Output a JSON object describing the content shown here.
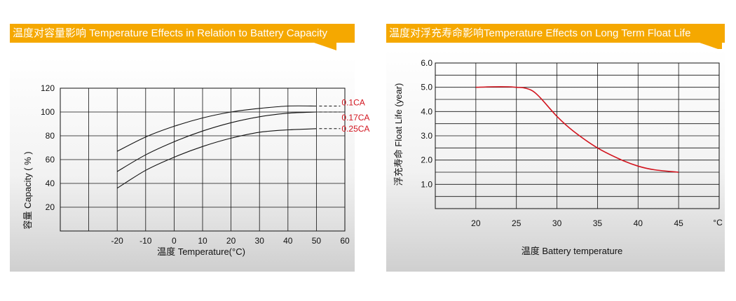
{
  "left": {
    "banner_title": "温度对容量影响 Temperature Effects in Relation to Battery Capacity",
    "chart_data": {
      "type": "line",
      "xlabel": "温度  Temperature(°C)",
      "ylabel": "容量 Capacity ( % )",
      "x_ticks": [
        "-20",
        "-10",
        "0",
        "10",
        "20",
        "30",
        "40",
        "50",
        "60"
      ],
      "y_ticks": [
        "120",
        "100",
        "80",
        "60",
        "40",
        "20"
      ],
      "xlim": [
        -40,
        60
      ],
      "ylim": [
        0,
        120
      ],
      "grid": true,
      "series": [
        {
          "name": "0.1CA",
          "x": [
            -20,
            -10,
            0,
            10,
            20,
            30,
            40,
            50
          ],
          "values": [
            67,
            79,
            88,
            95,
            100,
            103,
            105,
            105
          ]
        },
        {
          "name": "0.17CA",
          "x": [
            -20,
            -10,
            0,
            10,
            20,
            30,
            40,
            50
          ],
          "values": [
            50,
            64,
            75,
            84,
            91,
            96,
            99,
            100
          ]
        },
        {
          "name": "0.25CA",
          "x": [
            -20,
            -10,
            0,
            10,
            20,
            30,
            40,
            50
          ],
          "values": [
            36,
            51,
            62,
            71,
            78,
            83,
            85,
            86
          ]
        }
      ],
      "series_color": "#111111",
      "label_color": "#d2141e"
    }
  },
  "right": {
    "banner_title": "温度对浮充寿命影响Temperature Effects on Long Term Float Life",
    "chart_data": {
      "type": "line",
      "xlabel": "温度  Battery temperature",
      "ylabel": "浮充寿命  Float Life (year)",
      "x_ticks": [
        "20",
        "25",
        "30",
        "35",
        "40",
        "45",
        "°C"
      ],
      "y_ticks": [
        "6.0",
        "5.0",
        "4.0",
        "3.0",
        "2.0",
        "1.0"
      ],
      "xlim": [
        15,
        50
      ],
      "ylim": [
        0,
        6
      ],
      "grid": true,
      "series": [
        {
          "x": [
            20,
            22,
            24,
            25,
            26,
            27,
            28,
            30,
            32,
            35,
            38,
            40,
            42,
            45
          ],
          "values": [
            5.0,
            5.02,
            5.02,
            5.0,
            4.97,
            4.85,
            4.55,
            3.8,
            3.2,
            2.5,
            2.0,
            1.75,
            1.6,
            1.5
          ]
        }
      ],
      "series_color": "#d2141e"
    }
  }
}
